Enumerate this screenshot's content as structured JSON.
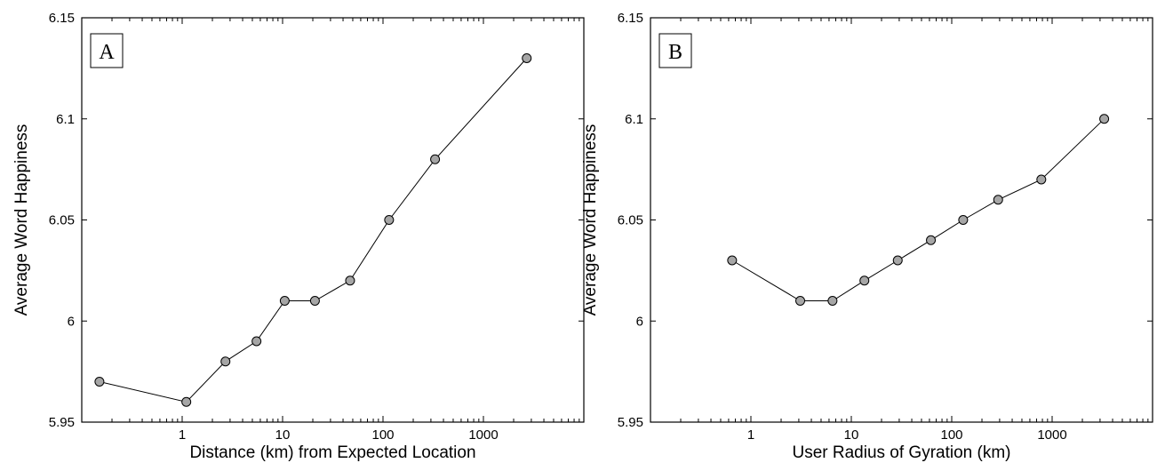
{
  "chart_data": [
    {
      "type": "line",
      "panel_label": "A",
      "xscale": "log",
      "xlim": [
        0.1,
        10000
      ],
      "ylim": [
        5.95,
        6.15
      ],
      "xticks": [
        1,
        10,
        100,
        1000
      ],
      "xtick_labels": [
        "1",
        "10",
        "100",
        "1000"
      ],
      "yticks": [
        5.95,
        6,
        6.05,
        6.1,
        6.15
      ],
      "ytick_labels": [
        "5.95",
        "6",
        "6.05",
        "6.1",
        "6.15"
      ],
      "xlabel": "Distance (km) from Expected Location",
      "ylabel": "Average Word Happiness",
      "grid": false,
      "marker_color": "#a6a6a6",
      "line_color": "#000000",
      "x": [
        0.15,
        1.1,
        2.7,
        5.5,
        10.5,
        21,
        47,
        115,
        330,
        2700
      ],
      "y": [
        5.97,
        5.96,
        5.98,
        5.99,
        6.01,
        6.01,
        6.02,
        6.05,
        6.08,
        6.13
      ]
    },
    {
      "type": "line",
      "panel_label": "B",
      "xscale": "log",
      "xlim": [
        0.1,
        10000
      ],
      "ylim": [
        5.95,
        6.15
      ],
      "xticks": [
        1,
        10,
        100,
        1000
      ],
      "xtick_labels": [
        "1",
        "10",
        "100",
        "1000"
      ],
      "yticks": [
        5.95,
        6,
        6.05,
        6.1,
        6.15
      ],
      "ytick_labels": [
        "5.95",
        "6",
        "6.05",
        "6.1",
        "6.15"
      ],
      "xlabel": "User Radius of Gyration (km)",
      "ylabel": "Average Word Happiness",
      "grid": false,
      "marker_color": "#a6a6a6",
      "line_color": "#000000",
      "x": [
        0.65,
        3.1,
        6.5,
        13.5,
        29,
        62,
        130,
        290,
        780,
        3300
      ],
      "y": [
        6.03,
        6.01,
        6.01,
        6.02,
        6.03,
        6.04,
        6.05,
        6.06,
        6.07,
        6.1
      ]
    }
  ]
}
